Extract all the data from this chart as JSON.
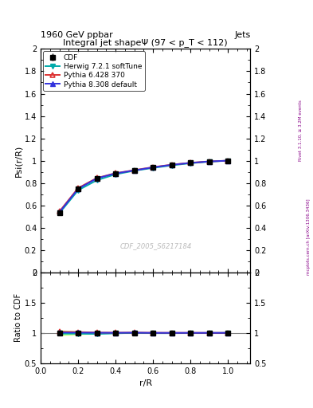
{
  "title_top": "1960 GeV ppbar",
  "title_top_right": "Jets",
  "plot_title": "Integral jet shapeΨ (97 < p_T < 112)",
  "xlabel": "r/R",
  "ylabel_main": "Psi(r/R)",
  "ylabel_ratio": "Ratio to CDF",
  "watermark": "CDF_2005_S6217184",
  "right_label": "mcplots.cern.ch [arXiv:1306.3436]",
  "right_label2": "Rivet 3.1.10, ≥ 3.2M events",
  "x_data": [
    0.1,
    0.2,
    0.3,
    0.4,
    0.5,
    0.6,
    0.7,
    0.8,
    0.9,
    1.0
  ],
  "cdf_y": [
    0.535,
    0.745,
    0.84,
    0.885,
    0.91,
    0.94,
    0.963,
    0.98,
    0.993,
    1.0
  ],
  "cdf_yerr": [
    0.008,
    0.006,
    0.005,
    0.004,
    0.004,
    0.003,
    0.003,
    0.002,
    0.002,
    0.002
  ],
  "herwig_y": [
    0.53,
    0.735,
    0.825,
    0.878,
    0.91,
    0.935,
    0.958,
    0.977,
    0.991,
    1.0
  ],
  "pythia6_y": [
    0.545,
    0.755,
    0.845,
    0.888,
    0.915,
    0.942,
    0.964,
    0.981,
    0.993,
    1.0
  ],
  "pythia8_y": [
    0.538,
    0.748,
    0.842,
    0.886,
    0.913,
    0.94,
    0.963,
    0.98,
    0.993,
    1.0
  ],
  "cdf_color": "black",
  "herwig_color": "#00AAAA",
  "pythia6_color": "#DD3333",
  "pythia8_color": "#3333DD",
  "xlim": [
    0.0,
    1.1
  ],
  "ylim_main": [
    0.0,
    2.0
  ],
  "ylim_ratio": [
    0.5,
    2.0
  ],
  "ratio_band_yellow": "#FFFF88",
  "ratio_band_green": "#88FF88",
  "ratio_band_alpha": 0.7,
  "bg_color": "white"
}
